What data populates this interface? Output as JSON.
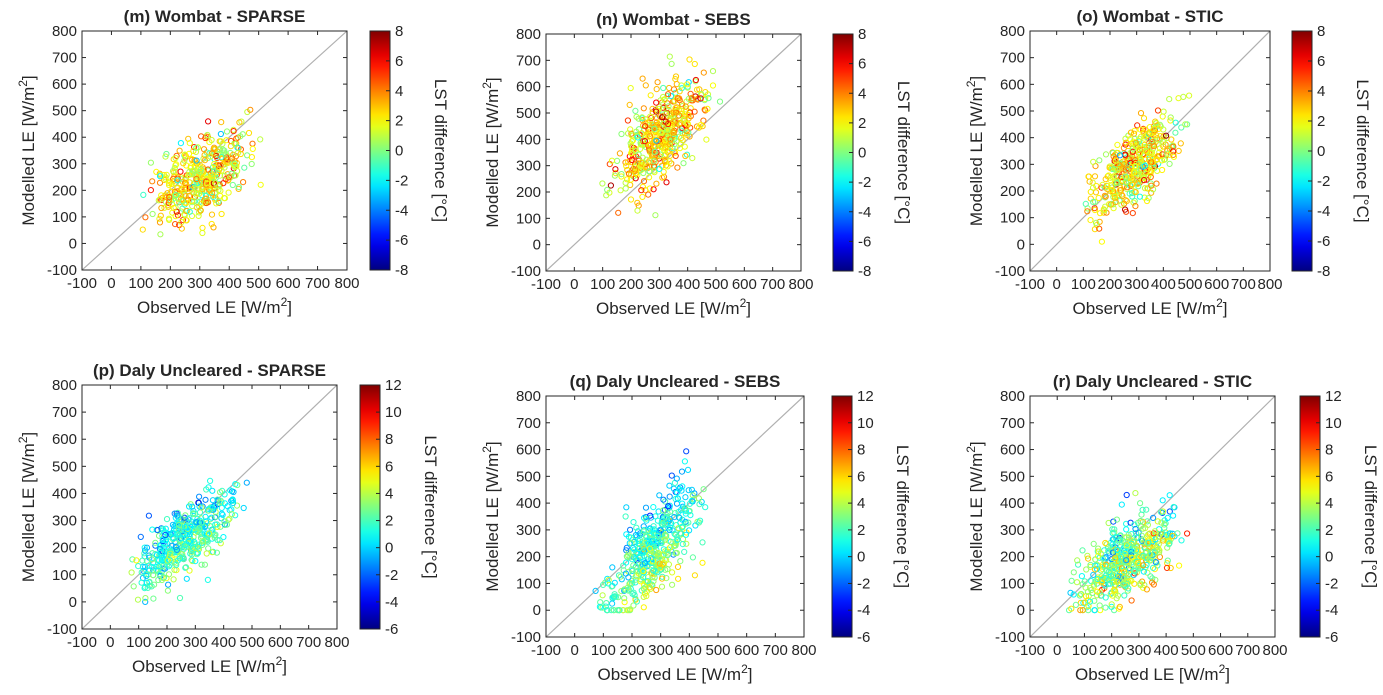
{
  "figure": {
    "colormap": "jet",
    "marker": "open-circle",
    "one_to_one_line_color": "#b0b0b0"
  },
  "chart_data": [
    {
      "type": "scatter",
      "title": "(m) Wombat - SPARSE",
      "xlabel": "Observed LE [W/m2]",
      "ylabel": "Modelled LE [W/m2]",
      "xlim": [
        -100,
        800
      ],
      "ylim": [
        -100,
        800
      ],
      "xticks": [
        "-100",
        "0",
        "100",
        "200",
        "300",
        "400",
        "500",
        "600",
        "700",
        "800"
      ],
      "yticks": [
        "-100",
        "0",
        "100",
        "200",
        "300",
        "400",
        "500",
        "600",
        "700",
        "800"
      ],
      "colorbar": {
        "label": "LST difference [°C]",
        "range": [
          -8,
          8
        ],
        "ticks": [
          "-8",
          "-6",
          "-4",
          "-2",
          "0",
          "2",
          "4",
          "6",
          "8"
        ]
      },
      "cloud": {
        "x_min": 20,
        "x_max": 570,
        "y_min": 20,
        "y_max": 550,
        "slope": 0.6,
        "intercept": 60,
        "spread": 75,
        "color_mean": 2.0,
        "color_sd": 1.8,
        "trend_effect": 0.0,
        "n": 450
      },
      "one_to_one_line": true,
      "grid": false
    },
    {
      "type": "scatter",
      "title": "(n) Wombat - SEBS",
      "xlabel": "Observed LE [W/m2]",
      "ylabel": "Modelled LE [W/m2]",
      "xlim": [
        -100,
        800
      ],
      "ylim": [
        -100,
        800
      ],
      "xticks": [
        "-100",
        "0",
        "100",
        "200",
        "300",
        "400",
        "500",
        "600",
        "700",
        "800"
      ],
      "yticks": [
        "-100",
        "0",
        "100",
        "200",
        "300",
        "400",
        "500",
        "600",
        "700",
        "800"
      ],
      "colorbar": {
        "label": "LST difference [°C]",
        "range": [
          -8,
          8
        ],
        "ticks": [
          "-8",
          "-6",
          "-4",
          "-2",
          "0",
          "2",
          "4",
          "6",
          "8"
        ]
      },
      "cloud": {
        "x_min": 30,
        "x_max": 560,
        "y_min": 0,
        "y_max": 740,
        "slope": 0.9,
        "intercept": 140,
        "spread": 85,
        "color_mean": 2.3,
        "color_sd": 1.8,
        "trend_effect": 0.0,
        "n": 500
      },
      "one_to_one_line": true,
      "grid": false
    },
    {
      "type": "scatter",
      "title": "(o) Wombat - STIC",
      "xlabel": "Observed LE [W/m2]",
      "ylabel": "Modelled LE [W/m2]",
      "xlim": [
        -100,
        800
      ],
      "ylim": [
        -100,
        800
      ],
      "xticks": [
        "-100",
        "0",
        "100",
        "200",
        "300",
        "400",
        "500",
        "600",
        "700",
        "800"
      ],
      "yticks": [
        "-100",
        "0",
        "100",
        "200",
        "300",
        "400",
        "500",
        "600",
        "700",
        "800"
      ],
      "colorbar": {
        "label": "LST difference [°C]",
        "range": [
          -8,
          8
        ],
        "ticks": [
          "-8",
          "-6",
          "-4",
          "-2",
          "0",
          "2",
          "4",
          "6",
          "8"
        ]
      },
      "cloud": {
        "x_min": 0,
        "x_max": 560,
        "y_min": 10,
        "y_max": 590,
        "slope": 0.75,
        "intercept": 80,
        "spread": 70,
        "color_mean": 2.3,
        "color_sd": 1.8,
        "trend_effect": 0.0,
        "n": 450
      },
      "one_to_one_line": true,
      "grid": false
    },
    {
      "type": "scatter",
      "title": "(p) Daly Uncleared - SPARSE",
      "xlabel": "Observed LE [W/m2]",
      "ylabel": "Modelled LE [W/m2]",
      "xlim": [
        -100,
        800
      ],
      "ylim": [
        -100,
        800
      ],
      "xticks": [
        "-100",
        "0",
        "100",
        "200",
        "300",
        "400",
        "500",
        "600",
        "700",
        "800"
      ],
      "yticks": [
        "-100",
        "0",
        "100",
        "200",
        "300",
        "400",
        "500",
        "600",
        "700",
        "800"
      ],
      "colorbar": {
        "label": "LST difference [°C]",
        "range": [
          -6,
          12
        ],
        "ticks": [
          "-6",
          "-4",
          "-2",
          "0",
          "2",
          "4",
          "6",
          "8",
          "10",
          "12"
        ]
      },
      "cloud": {
        "x_min": -50,
        "x_max": 550,
        "y_min": 0,
        "y_max": 480,
        "slope": 0.75,
        "intercept": 30,
        "spread": 65,
        "color_mean": 1.5,
        "color_sd": 1.5,
        "trend_effect": -0.012,
        "n": 450
      },
      "one_to_one_line": true,
      "grid": false
    },
    {
      "type": "scatter",
      "title": "(q) Daly Uncleared - SEBS",
      "xlabel": "Observed LE [W/m2]",
      "ylabel": "Modelled LE [W/m2]",
      "xlim": [
        -100,
        800
      ],
      "ylim": [
        -100,
        800
      ],
      "xticks": [
        "-100",
        "0",
        "100",
        "200",
        "300",
        "400",
        "500",
        "600",
        "700",
        "800"
      ],
      "yticks": [
        "-100",
        "0",
        "100",
        "200",
        "300",
        "400",
        "500",
        "600",
        "700",
        "800"
      ],
      "colorbar": {
        "label": "LST difference [°C]",
        "range": [
          -6,
          12
        ],
        "ticks": [
          "-6",
          "-4",
          "-2",
          "0",
          "2",
          "4",
          "6",
          "8",
          "10",
          "12"
        ]
      },
      "cloud": {
        "x_min": -20,
        "x_max": 540,
        "y_min": 0,
        "y_max": 640,
        "slope": 1.05,
        "intercept": -60,
        "spread": 85,
        "color_mean": 2.0,
        "color_sd": 1.5,
        "trend_effect": -0.012,
        "n": 480
      },
      "one_to_one_line": true,
      "grid": false
    },
    {
      "type": "scatter",
      "title": "(r) Daly Uncleared - STIC",
      "xlabel": "Observed LE [W/m2]",
      "ylabel": "Modelled LE [W/m2]",
      "xlim": [
        -100,
        800
      ],
      "ylim": [
        -100,
        800
      ],
      "xticks": [
        "-100",
        "0",
        "100",
        "200",
        "300",
        "400",
        "500",
        "600",
        "700",
        "800"
      ],
      "yticks": [
        "-100",
        "0",
        "100",
        "200",
        "300",
        "400",
        "500",
        "600",
        "700",
        "800"
      ],
      "colorbar": {
        "label": "LST difference [°C]",
        "range": [
          -6,
          12
        ],
        "ticks": [
          "-6",
          "-4",
          "-2",
          "0",
          "2",
          "4",
          "6",
          "8",
          "10",
          "12"
        ]
      },
      "cloud": {
        "x_min": -70,
        "x_max": 560,
        "y_min": 0,
        "y_max": 480,
        "slope": 0.6,
        "intercept": 30,
        "spread": 70,
        "color_mean": 3.0,
        "color_sd": 2.0,
        "trend_effect": -0.012,
        "n": 520
      },
      "one_to_one_line": true,
      "grid": false
    }
  ]
}
